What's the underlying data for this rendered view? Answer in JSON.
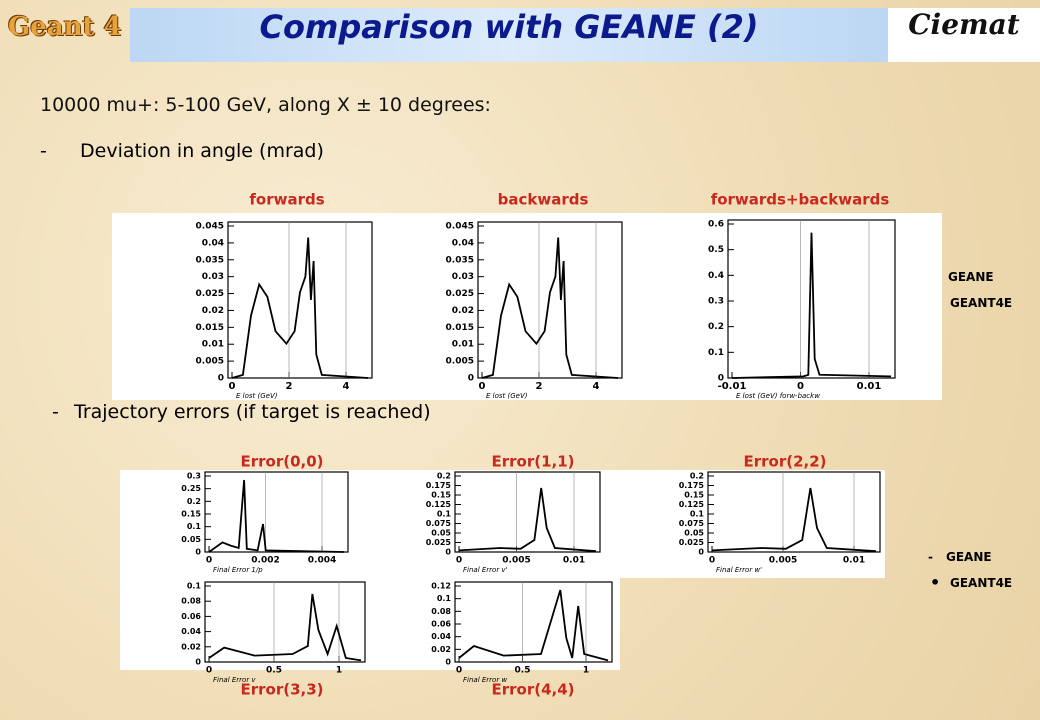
{
  "header": {
    "left_logo": "Geant 4",
    "title": "Comparison with GEANE (2)",
    "right_logo": "Ciemat"
  },
  "intro": "10000 mu+: 5-100 GeV, along X ± 10 degrees:",
  "bullets": [
    {
      "marker": "-",
      "text": "Deviation in angle (mrad)"
    },
    {
      "marker": "-",
      "text": "Trajectory errors (if target is reached)"
    }
  ],
  "angle_plots": {
    "panels": [
      {
        "title": "forwards",
        "yticks": [
          "0",
          "0.005",
          "0.01",
          "0.015",
          "0.02",
          "0.025",
          "0.03",
          "0.035",
          "0.04",
          "0.045"
        ],
        "xticks": [
          "0",
          "2",
          "4"
        ],
        "xlabel": "E lost (GeV)"
      },
      {
        "title": "backwards",
        "yticks": [
          "0",
          "0.005",
          "0.01",
          "0.015",
          "0.02",
          "0.025",
          "0.03",
          "0.035",
          "0.04",
          "0.045"
        ],
        "xticks": [
          "0",
          "2",
          "4"
        ],
        "xlabel": "E lost (GeV)"
      },
      {
        "title": "forwards+backwards",
        "yticks": [
          "0",
          "0.1",
          "0.2",
          "0.3",
          "0.4",
          "0.5",
          "0.6"
        ],
        "xticks": [
          "-0.01",
          "0",
          "0.01"
        ],
        "xlabel": "E lost (GeV) forw-backw"
      }
    ],
    "legend": [
      {
        "text": "GEANE"
      },
      {
        "text": "GEANT4E"
      }
    ]
  },
  "error_plots": {
    "panels": [
      {
        "title": "Error(0,0)",
        "yticks": [
          "0",
          "0.05",
          "0.1",
          "0.15",
          "0.2",
          "0.25",
          "0.3"
        ],
        "xticks": [
          "0",
          "0.002",
          "0.004"
        ],
        "xlabel": "Final Error 1/p"
      },
      {
        "title": "Error(1,1)",
        "yticks": [
          "0",
          "0.025",
          "0.05",
          "0.075",
          "0.1",
          "0.125",
          "0.15",
          "0.175",
          "0.2"
        ],
        "xticks": [
          "0",
          "0.005",
          "0.01"
        ],
        "xlabel": "Final Error v'"
      },
      {
        "title": "Error(2,2)",
        "yticks": [
          "0",
          "0.025",
          "0.05",
          "0.075",
          "0.1",
          "0.125",
          "0.15",
          "0.175",
          "0.2"
        ],
        "xticks": [
          "0",
          "0.005",
          "0.01"
        ],
        "xlabel": "Final Error w'"
      },
      {
        "title": "Error(3,3)",
        "yticks": [
          "0",
          "0.02",
          "0.04",
          "0.06",
          "0.08",
          "0.1"
        ],
        "xticks": [
          "0",
          "0.5",
          "1"
        ],
        "xlabel": "Final Error v"
      },
      {
        "title": "Error(4,4)",
        "yticks": [
          "0",
          "0.02",
          "0.04",
          "0.06",
          "0.08",
          "0.1",
          "0.12"
        ],
        "xticks": [
          "0",
          "0.5",
          "1"
        ],
        "xlabel": "Final Error w"
      }
    ],
    "legend": [
      {
        "marker": "-",
        "text": "GEANE"
      },
      {
        "marker": "•",
        "text": "GEANT4E"
      }
    ]
  }
}
